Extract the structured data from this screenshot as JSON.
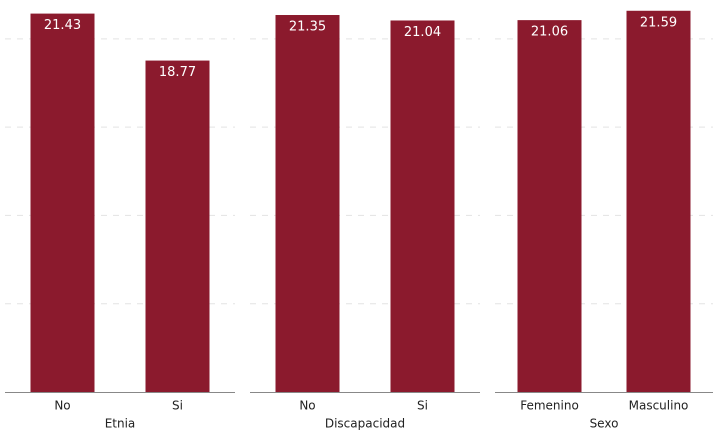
{
  "chart_data": [
    {
      "type": "bar",
      "xlabel": "Etnia",
      "categories": [
        "No",
        "Si"
      ],
      "values": [
        21.43,
        18.77
      ],
      "color": "#8b1a2d",
      "ylim": [
        0,
        22.2
      ],
      "yticks": [
        5,
        10,
        15,
        20
      ],
      "grid": true
    },
    {
      "type": "bar",
      "xlabel": "Discapacidad",
      "categories": [
        "No",
        "Si"
      ],
      "values": [
        21.35,
        21.04
      ],
      "color": "#8b1a2d",
      "ylim": [
        0,
        22.2
      ],
      "yticks": [
        5,
        10,
        15,
        20
      ],
      "grid": true
    },
    {
      "type": "bar",
      "xlabel": "Sexo",
      "categories": [
        "Femenino",
        "Masculino"
      ],
      "values": [
        21.06,
        21.59
      ],
      "color": "#8b1a2d",
      "ylim": [
        0,
        22.2
      ],
      "yticks": [
        5,
        10,
        15,
        20
      ],
      "grid": true
    }
  ]
}
